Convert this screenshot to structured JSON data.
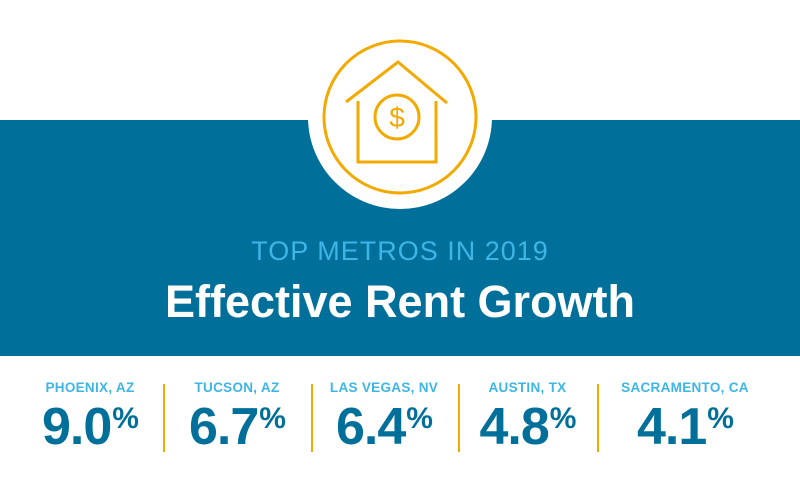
{
  "colors": {
    "band": "#00709a",
    "accent": "#f2a900",
    "light_blue": "#3db5e6",
    "white": "#ffffff"
  },
  "header": {
    "icon": "house-dollar-icon",
    "subtitle": "TOP METROS IN 2019",
    "title": "Effective Rent Growth"
  },
  "stats": [
    {
      "label": "PHOENIX, AZ",
      "value": "9.0",
      "unit": "%"
    },
    {
      "label": "TUCSON, AZ",
      "value": "6.7",
      "unit": "%"
    },
    {
      "label": "LAS VEGAS, NV",
      "value": "6.4",
      "unit": "%"
    },
    {
      "label": "AUSTIN, TX",
      "value": "4.8",
      "unit": "%"
    },
    {
      "label": "SACRAMENTO, CA",
      "value": "4.1",
      "unit": "%"
    }
  ]
}
